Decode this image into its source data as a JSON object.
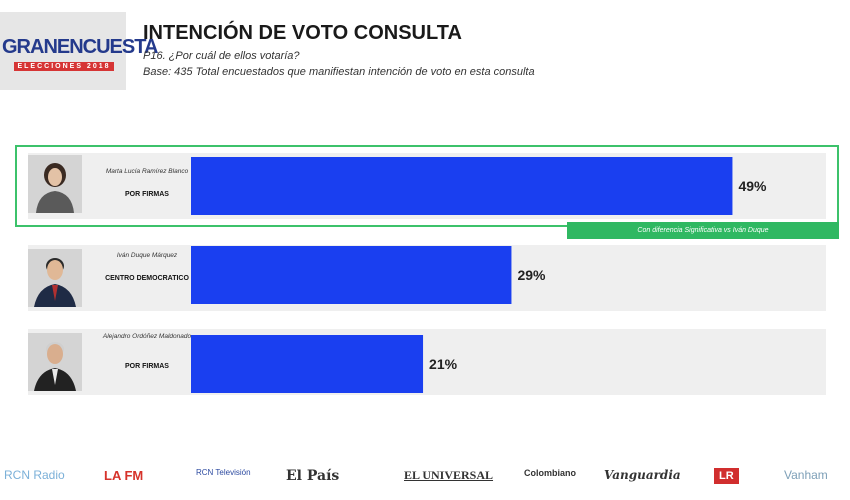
{
  "header": {
    "logo_main": "GRANENCUESTA",
    "logo_sub": "ELECCIONES 2018",
    "title": "INTENCIÓN DE VOTO CONSULTA",
    "question": "P16. ¿Por cuál de ellos votaría?",
    "base": "Base: 435 Total encuestados que manifiestan intención de voto en esta consulta"
  },
  "candidates": [
    {
      "name": "Marta Lucía Ramírez Blanco",
      "party": "POR FIRMAS"
    },
    {
      "name": "Iván Duque Márquez",
      "party": "CENTRO DEMOCRATICO"
    },
    {
      "name": "Alejandro Ordóñez Maldonado",
      "party": "POR FIRMAS"
    }
  ],
  "note": "Con diferencia Significativa vs Iván Duque",
  "colors": {
    "bar": "#1a3ff0",
    "highlight": "#3cc26b",
    "row_bg": "#efefef"
  },
  "chart_data": {
    "type": "bar",
    "orientation": "horizontal",
    "categories": [
      "Marta Lucía Ramírez Blanco",
      "Iván Duque Márquez",
      "Alejandro Ordóñez Maldonado"
    ],
    "values": [
      49,
      29,
      21
    ],
    "value_labels": [
      "49%",
      "29%",
      "21%"
    ],
    "xlim": [
      0,
      100
    ]
  },
  "footer": {
    "logos": [
      "RCN Radio",
      "LA FM",
      "RCN Televisión",
      "El País",
      "EL UNIVERSAL",
      "Colombiano",
      "Vanguardia",
      "LR",
      "Vanham"
    ]
  }
}
